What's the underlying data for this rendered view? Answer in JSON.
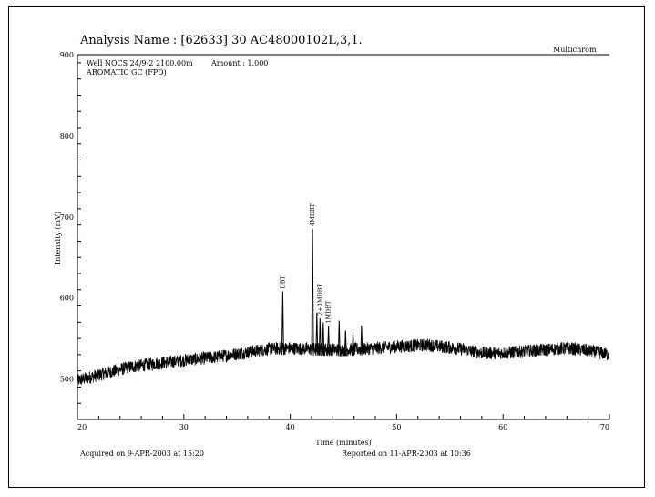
{
  "header": {
    "title": "Analysis Name : [62633] 30 AC48000102L,3,1.",
    "software": "Multichrom",
    "well_info": "Well NOCS 24/9-2 2100.00m",
    "amount": "Amount : 1.000",
    "method": "AROMATIC GC (FPD)"
  },
  "footer": {
    "acquired": "Acquired on  9-APR-2003 at 15:20",
    "reported": "Reported on 11-APR-2003 at 10:36"
  },
  "chart_data": {
    "type": "line",
    "title": "Analysis Name : [62633] 30 AC48000102L,3,1.",
    "xlabel": "Time (minutes)",
    "ylabel": "Intensity (mV)",
    "xlim": [
      20,
      70
    ],
    "ylim": [
      450,
      900
    ],
    "x_ticks": [
      20,
      30,
      40,
      50,
      60,
      70
    ],
    "y_ticks": [
      500,
      600,
      700,
      800,
      900
    ],
    "baseline": [
      {
        "x": 20,
        "y": 498
      },
      {
        "x": 22,
        "y": 505
      },
      {
        "x": 25,
        "y": 515
      },
      {
        "x": 28,
        "y": 520
      },
      {
        "x": 30,
        "y": 523
      },
      {
        "x": 33,
        "y": 527
      },
      {
        "x": 36,
        "y": 533
      },
      {
        "x": 38,
        "y": 537
      },
      {
        "x": 40,
        "y": 538
      },
      {
        "x": 42,
        "y": 537
      },
      {
        "x": 45,
        "y": 536
      },
      {
        "x": 48,
        "y": 538
      },
      {
        "x": 50,
        "y": 540
      },
      {
        "x": 53,
        "y": 542
      },
      {
        "x": 56,
        "y": 537
      },
      {
        "x": 58,
        "y": 532
      },
      {
        "x": 60,
        "y": 532
      },
      {
        "x": 63,
        "y": 535
      },
      {
        "x": 66,
        "y": 538
      },
      {
        "x": 68,
        "y": 535
      },
      {
        "x": 70,
        "y": 530
      }
    ],
    "noise_amplitude_mv": 8,
    "peaks": [
      {
        "x": 39.3,
        "y": 608,
        "label": "DBT"
      },
      {
        "x": 42.1,
        "y": 685,
        "label": "4MDBT"
      },
      {
        "x": 42.5,
        "y": 582,
        "label": ""
      },
      {
        "x": 42.8,
        "y": 575,
        "label": "2+3MDBT"
      },
      {
        "x": 43.1,
        "y": 570,
        "label": ""
      },
      {
        "x": 43.6,
        "y": 565,
        "label": "1MDBT"
      },
      {
        "x": 44.6,
        "y": 572,
        "label": ""
      },
      {
        "x": 45.2,
        "y": 560,
        "label": ""
      },
      {
        "x": 45.9,
        "y": 558,
        "label": ""
      },
      {
        "x": 46.7,
        "y": 566,
        "label": ""
      }
    ]
  }
}
